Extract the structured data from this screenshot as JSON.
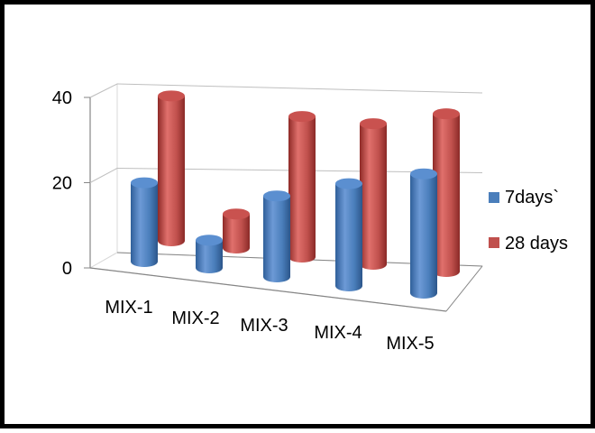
{
  "chart_data": {
    "type": "bar",
    "style": "3d-cylinder",
    "categories": [
      "MIX-1",
      "MIX-2",
      "MIX-3",
      "MIX-4",
      "MIX-5"
    ],
    "series": [
      {
        "name": "7days`",
        "values": [
          18.5,
          6.5,
          19,
          24,
          28
        ],
        "color": "#4a7ebb"
      },
      {
        "name": "28 days",
        "values": [
          34,
          8,
          33,
          33,
          37
        ],
        "color": "#c0504d"
      }
    ],
    "yticks": [
      "0",
      "20",
      "40"
    ],
    "ylim": [
      0,
      40
    ],
    "grid": true,
    "legend_position": "right",
    "title": "",
    "xlabel": "",
    "ylabel": ""
  }
}
